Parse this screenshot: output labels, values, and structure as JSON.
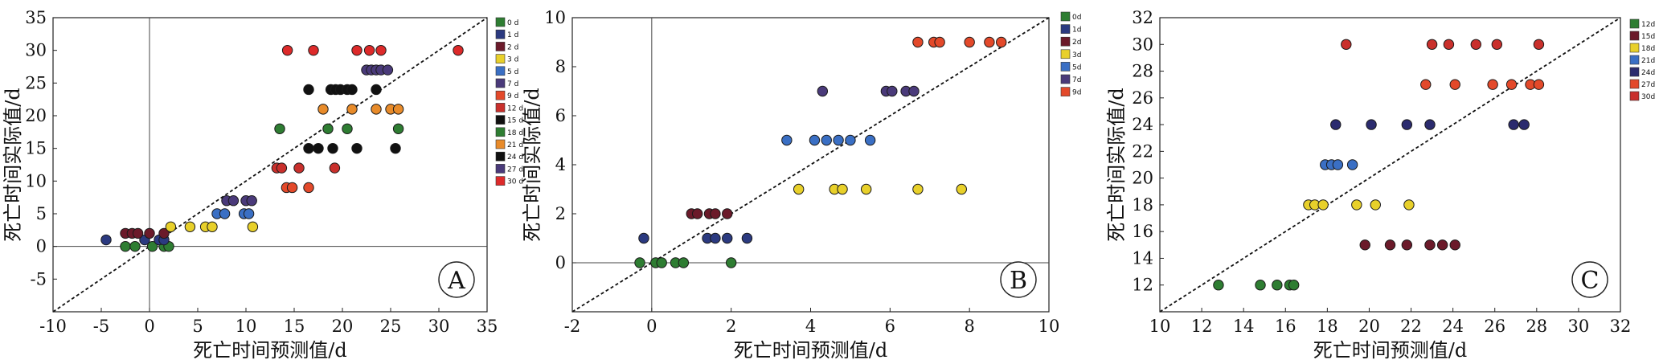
{
  "chart_data": [
    {
      "type": "scatter",
      "panel_label": "A",
      "xlabel": "死亡时间预测值/d",
      "ylabel": "死亡时间实际值/d",
      "xlim": [
        -10,
        35
      ],
      "ylim": [
        -10,
        35
      ],
      "xticks": [
        -10,
        -5,
        0,
        5,
        10,
        15,
        20,
        25,
        30,
        35
      ],
      "yticks": [
        -5,
        0,
        5,
        10,
        15,
        20,
        25,
        30,
        35
      ],
      "zero_lines": true,
      "diagonal": "y=x",
      "legend_position": "top-right",
      "series": [
        {
          "name": "0 d",
          "color": "#2e7d32",
          "points": [
            [
              -2.5,
              0
            ],
            [
              -1.5,
              0
            ],
            [
              0.3,
              0
            ],
            [
              1.5,
              0
            ],
            [
              2,
              0
            ]
          ]
        },
        {
          "name": "1 d",
          "color": "#2b3a80",
          "points": [
            [
              -4.5,
              1
            ],
            [
              -0.5,
              1
            ],
            [
              1,
              1
            ],
            [
              1.5,
              1
            ]
          ]
        },
        {
          "name": "2 d",
          "color": "#6b1a2a",
          "points": [
            [
              -2.5,
              2
            ],
            [
              -1.8,
              2
            ],
            [
              -1.2,
              2
            ],
            [
              0,
              2
            ],
            [
              1.5,
              2
            ]
          ]
        },
        {
          "name": "3 d",
          "color": "#e8d02a",
          "points": [
            [
              2.2,
              3
            ],
            [
              4.2,
              3
            ],
            [
              5.8,
              3
            ],
            [
              6.5,
              3
            ],
            [
              10.7,
              3
            ]
          ]
        },
        {
          "name": "5 d",
          "color": "#3a6fc4",
          "points": [
            [
              7,
              5
            ],
            [
              7.8,
              5
            ],
            [
              9.8,
              5
            ],
            [
              10.3,
              5
            ]
          ]
        },
        {
          "name": "7 d",
          "color": "#4a3a7a",
          "points": [
            [
              8,
              7
            ],
            [
              8.7,
              7
            ],
            [
              10,
              7
            ],
            [
              10.6,
              7
            ]
          ]
        },
        {
          "name": "9 d",
          "color": "#e3492a",
          "points": [
            [
              14.2,
              9
            ],
            [
              14.8,
              9
            ],
            [
              16.5,
              9
            ]
          ]
        },
        {
          "name": "12 d",
          "color": "#c9302c",
          "points": [
            [
              13.2,
              12
            ],
            [
              13.7,
              12
            ],
            [
              15.5,
              12
            ],
            [
              19.2,
              12
            ]
          ]
        },
        {
          "name": "15 d",
          "color": "#111111",
          "points": [
            [
              16.5,
              15
            ],
            [
              17.5,
              15
            ],
            [
              19,
              15
            ],
            [
              21.5,
              15
            ],
            [
              25.5,
              15
            ]
          ]
        },
        {
          "name": "18 d",
          "color": "#2e7d32",
          "points": [
            [
              13.5,
              18
            ],
            [
              18.5,
              18
            ],
            [
              20.5,
              18
            ],
            [
              25.8,
              18
            ]
          ]
        },
        {
          "name": "21 d",
          "color": "#e88b2a",
          "points": [
            [
              18,
              21
            ],
            [
              21,
              21
            ],
            [
              23.5,
              21
            ],
            [
              25,
              21
            ],
            [
              25.8,
              21
            ]
          ]
        },
        {
          "name": "24 d",
          "color": "#111111",
          "points": [
            [
              16.5,
              24
            ],
            [
              18.8,
              24
            ],
            [
              19.3,
              24
            ],
            [
              19.8,
              24
            ],
            [
              20.5,
              24
            ],
            [
              21,
              24
            ],
            [
              23.5,
              24
            ]
          ]
        },
        {
          "name": "27 d",
          "color": "#4a3a7a",
          "points": [
            [
              22.5,
              27
            ],
            [
              23,
              27
            ],
            [
              23.5,
              27
            ],
            [
              24,
              27
            ],
            [
              24.7,
              27
            ]
          ]
        },
        {
          "name": "30 d",
          "color": "#dd2a2a",
          "points": [
            [
              14.3,
              30
            ],
            [
              17,
              30
            ],
            [
              21.5,
              30
            ],
            [
              22.8,
              30
            ],
            [
              24,
              30
            ],
            [
              32,
              30
            ]
          ]
        }
      ]
    },
    {
      "type": "scatter",
      "panel_label": "B",
      "xlabel": "死亡时间预测值/d",
      "ylabel": "死亡时间实际值/d",
      "xlim": [
        -2,
        10
      ],
      "ylim": [
        -2,
        10
      ],
      "xticks": [
        -2,
        0,
        2,
        4,
        6,
        8,
        10
      ],
      "yticks": [
        0,
        2,
        4,
        6,
        8,
        10
      ],
      "zero_lines": true,
      "diagonal": "y=x",
      "legend_position": "top-right",
      "series": [
        {
          "name": "0d",
          "color": "#2e7d32",
          "points": [
            [
              -0.3,
              0
            ],
            [
              0.1,
              0
            ],
            [
              0.25,
              0
            ],
            [
              0.6,
              0
            ],
            [
              0.8,
              0
            ],
            [
              2,
              0
            ]
          ]
        },
        {
          "name": "1d",
          "color": "#2b3a80",
          "points": [
            [
              -0.2,
              1
            ],
            [
              1.4,
              1
            ],
            [
              1.6,
              1
            ],
            [
              1.9,
              1
            ],
            [
              2.4,
              1
            ]
          ]
        },
        {
          "name": "2d",
          "color": "#6b1a2a",
          "points": [
            [
              1,
              2
            ],
            [
              1.15,
              2
            ],
            [
              1.45,
              2
            ],
            [
              1.6,
              2
            ],
            [
              1.9,
              2
            ]
          ]
        },
        {
          "name": "3d",
          "color": "#e8d02a",
          "points": [
            [
              3.7,
              3
            ],
            [
              4.6,
              3
            ],
            [
              4.8,
              3
            ],
            [
              5.4,
              3
            ],
            [
              6.7,
              3
            ],
            [
              7.8,
              3
            ]
          ]
        },
        {
          "name": "5d",
          "color": "#3a6fc4",
          "points": [
            [
              3.4,
              5
            ],
            [
              4.1,
              5
            ],
            [
              4.4,
              5
            ],
            [
              4.7,
              5
            ],
            [
              5,
              5
            ],
            [
              5.5,
              5
            ]
          ]
        },
        {
          "name": "7d",
          "color": "#4a3a7a",
          "points": [
            [
              4.3,
              7
            ],
            [
              5.9,
              7
            ],
            [
              6.05,
              7
            ],
            [
              6.4,
              7
            ],
            [
              6.6,
              7
            ]
          ]
        },
        {
          "name": "9d",
          "color": "#e3492a",
          "points": [
            [
              6.7,
              9
            ],
            [
              7.1,
              9
            ],
            [
              7.25,
              9
            ],
            [
              8,
              9
            ],
            [
              8.5,
              9
            ],
            [
              8.8,
              9
            ]
          ]
        }
      ]
    },
    {
      "type": "scatter",
      "panel_label": "C",
      "xlabel": "死亡时间预测值/d",
      "ylabel": "死亡时间实际值/d",
      "xlim": [
        10,
        32
      ],
      "ylim": [
        10,
        32
      ],
      "xticks": [
        10,
        12,
        14,
        16,
        18,
        20,
        22,
        24,
        26,
        28,
        30,
        32
      ],
      "yticks": [
        12,
        14,
        16,
        18,
        20,
        22,
        24,
        26,
        28,
        30,
        32
      ],
      "zero_lines": false,
      "diagonal": "y=x",
      "legend_position": "top-right",
      "series": [
        {
          "name": "12d",
          "color": "#2e7d32",
          "points": [
            [
              12.8,
              12
            ],
            [
              14.8,
              12
            ],
            [
              15.6,
              12
            ],
            [
              16.2,
              12
            ],
            [
              16.4,
              12
            ]
          ]
        },
        {
          "name": "15d",
          "color": "#6b1a2a",
          "points": [
            [
              19.8,
              15
            ],
            [
              21,
              15
            ],
            [
              21.8,
              15
            ],
            [
              22.9,
              15
            ],
            [
              23.5,
              15
            ],
            [
              24.1,
              15
            ]
          ]
        },
        {
          "name": "18d",
          "color": "#e8d02a",
          "points": [
            [
              17.1,
              18
            ],
            [
              17.4,
              18
            ],
            [
              17.8,
              18
            ],
            [
              19.4,
              18
            ],
            [
              20.3,
              18
            ],
            [
              21.9,
              18
            ]
          ]
        },
        {
          "name": "21d",
          "color": "#3a6fc4",
          "points": [
            [
              17.9,
              21
            ],
            [
              18.2,
              21
            ],
            [
              18.5,
              21
            ],
            [
              19.2,
              21
            ]
          ]
        },
        {
          "name": "24d",
          "color": "#2b2b6e",
          "points": [
            [
              18.4,
              24
            ],
            [
              20.1,
              24
            ],
            [
              21.8,
              24
            ],
            [
              22.9,
              24
            ],
            [
              26.9,
              24
            ],
            [
              27.4,
              24
            ]
          ]
        },
        {
          "name": "27d",
          "color": "#e3492a",
          "points": [
            [
              22.7,
              27
            ],
            [
              24.1,
              27
            ],
            [
              25.9,
              27
            ],
            [
              26.8,
              27
            ],
            [
              27.7,
              27
            ],
            [
              28.1,
              27
            ]
          ]
        },
        {
          "name": "30d",
          "color": "#c9302c",
          "points": [
            [
              18.9,
              30
            ],
            [
              23,
              30
            ],
            [
              23.8,
              30
            ],
            [
              25.1,
              30
            ],
            [
              26.1,
              30
            ],
            [
              28.1,
              30
            ]
          ]
        }
      ]
    }
  ]
}
